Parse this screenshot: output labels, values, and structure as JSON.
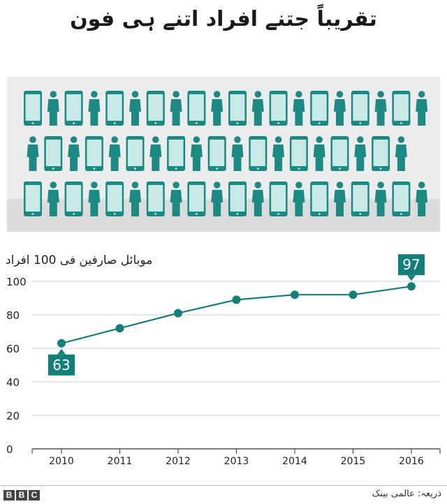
{
  "title": "تقریباً جتنے افراد اتنے ہی فون",
  "illustration": {
    "icons": [
      "phone-icon",
      "person-icon"
    ],
    "colors": {
      "phone": "#178a84",
      "screen": "#c9e9e6",
      "person": "#1a8a83"
    }
  },
  "chart_data": {
    "type": "line",
    "title": "تقریباً جتنے افراد اتنے ہی فون",
    "ylabel": "موبائل صارفین فی 100 افراد",
    "xlabel": "",
    "categories": [
      "2010",
      "2011",
      "2012",
      "2013",
      "2014",
      "2015",
      "2016"
    ],
    "values": [
      63,
      72,
      81,
      89,
      92,
      92,
      97
    ],
    "ylim": [
      0,
      100
    ],
    "yticks": [
      0,
      20,
      40,
      60,
      80,
      100
    ],
    "grid": true,
    "annotations": [
      {
        "category": "2010",
        "text": "63",
        "position": "below"
      },
      {
        "category": "2016",
        "text": "97",
        "position": "above"
      }
    ],
    "color": "#127f78"
  },
  "footer": {
    "logo": [
      "B",
      "B",
      "C"
    ],
    "source": "ذریعہ: عالمی بینک"
  }
}
